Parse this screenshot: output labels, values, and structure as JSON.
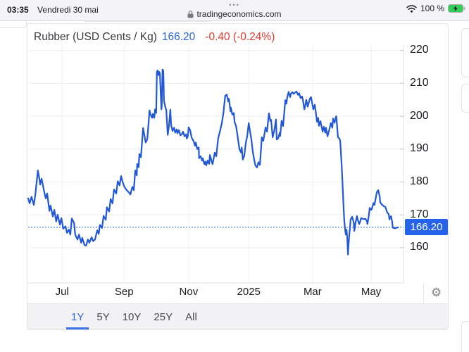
{
  "status_bar": {
    "time": "03:35",
    "date": "Vendredi 30 mai",
    "menu_dots": "•••",
    "url": "tradingeconomics.com",
    "battery": "100 %"
  },
  "header": {
    "title": "Rubber (USD Cents / Kg)",
    "price": "166.20",
    "change": "-0.40 (-0.24%)"
  },
  "footer": {
    "tabs": [
      {
        "label": "1Y",
        "active": true
      },
      {
        "label": "5Y",
        "active": false
      },
      {
        "label": "10Y",
        "active": false
      },
      {
        "label": "25Y",
        "active": false
      },
      {
        "label": "All",
        "active": false
      }
    ]
  },
  "icons": {
    "gear": "⚙"
  },
  "chart_data": {
    "type": "line",
    "title": "Rubber (USD Cents / Kg)",
    "unit": "USD Cents / Kg",
    "last_price": 166.2,
    "change": -0.4,
    "change_pct": "-0.24%",
    "current_value_label": "166.20",
    "x_range": [
      "2024-05-30",
      "2025-05-30"
    ],
    "ylim": [
      155,
      225
    ],
    "grid": true,
    "y_ticks": [
      220,
      210,
      200,
      190,
      180,
      170,
      160
    ],
    "x_ticks": [
      {
        "label": "Jul",
        "t": 0.091
      },
      {
        "label": "Sep",
        "t": 0.257
      },
      {
        "label": "Nov",
        "t": 0.43
      },
      {
        "label": "2025",
        "t": 0.591
      },
      {
        "label": "Mar",
        "t": 0.762
      },
      {
        "label": "May",
        "t": 0.919
      }
    ],
    "colors": {
      "line": "#2258d6",
      "marker_bg": "#2563eb",
      "dotted": "#2f6ae0",
      "grid": "#ededef",
      "grid_v": "#f1f1f3",
      "axis": "#e0e0e3",
      "tick": "#c7c7cb"
    },
    "series": [
      {
        "name": "Rubber 1Y",
        "points": [
          [
            0,
            175
          ],
          [
            0.004,
            173.5
          ],
          [
            0.009,
            175.5
          ],
          [
            0.015,
            173
          ],
          [
            0.019,
            176
          ],
          [
            0.026,
            183.5
          ],
          [
            0.03,
            181
          ],
          [
            0.032,
            179.2
          ],
          [
            0.036,
            181
          ],
          [
            0.042,
            177.5
          ],
          [
            0.047,
            175
          ],
          [
            0.051,
            176.5
          ],
          [
            0.057,
            171.2
          ],
          [
            0.06,
            172.8
          ],
          [
            0.066,
            169.5
          ],
          [
            0.07,
            171.5
          ],
          [
            0.075,
            168
          ],
          [
            0.079,
            170
          ],
          [
            0.085,
            167
          ],
          [
            0.089,
            169
          ],
          [
            0.094,
            165.8
          ],
          [
            0.1,
            166.5
          ],
          [
            0.104,
            164.5
          ],
          [
            0.109,
            165.5
          ],
          [
            0.113,
            164
          ],
          [
            0.117,
            168.9
          ],
          [
            0.123,
            167.5
          ],
          [
            0.126,
            164
          ],
          [
            0.132,
            162.5
          ],
          [
            0.136,
            164
          ],
          [
            0.142,
            161.5
          ],
          [
            0.145,
            163
          ],
          [
            0.151,
            160.8
          ],
          [
            0.155,
            160.6
          ],
          [
            0.16,
            162.5
          ],
          [
            0.164,
            161.5
          ],
          [
            0.17,
            163.2
          ],
          [
            0.174,
            162
          ],
          [
            0.179,
            162.5
          ],
          [
            0.185,
            165.3
          ],
          [
            0.189,
            164.2
          ],
          [
            0.192,
            166.9
          ],
          [
            0.198,
            166
          ],
          [
            0.202,
            169.7
          ],
          [
            0.208,
            168.5
          ],
          [
            0.211,
            172.3
          ],
          [
            0.217,
            171
          ],
          [
            0.221,
            174.8
          ],
          [
            0.226,
            173.5
          ],
          [
            0.23,
            177.7
          ],
          [
            0.236,
            176.5
          ],
          [
            0.24,
            180.2
          ],
          [
            0.245,
            179
          ],
          [
            0.249,
            181.8
          ],
          [
            0.253,
            180
          ],
          [
            0.258,
            178.5
          ],
          [
            0.264,
            177.5
          ],
          [
            0.27,
            176.8
          ],
          [
            0.274,
            176.2
          ],
          [
            0.279,
            178.5
          ],
          [
            0.283,
            177.5
          ],
          [
            0.287,
            183.5
          ],
          [
            0.291,
            182
          ],
          [
            0.292,
            185.5
          ],
          [
            0.296,
            184.5
          ],
          [
            0.298,
            188.5
          ],
          [
            0.302,
            187.5
          ],
          [
            0.306,
            193.5
          ],
          [
            0.308,
            196.4
          ],
          [
            0.311,
            194.5
          ],
          [
            0.315,
            192
          ],
          [
            0.319,
            193
          ],
          [
            0.323,
            198.5
          ],
          [
            0.325,
            201.8
          ],
          [
            0.328,
            200.5
          ],
          [
            0.332,
            199.5
          ],
          [
            0.334,
            200.7
          ],
          [
            0.338,
            199.5
          ],
          [
            0.34,
            202.1
          ],
          [
            0.343,
            201
          ],
          [
            0.345,
            213.5
          ],
          [
            0.347,
            213.9
          ],
          [
            0.349,
            212.5
          ],
          [
            0.351,
            213.5
          ],
          [
            0.353,
            212.9
          ],
          [
            0.355,
            207.5
          ],
          [
            0.357,
            202.1
          ],
          [
            0.358,
            203
          ],
          [
            0.36,
            214.2
          ],
          [
            0.362,
            213.8
          ],
          [
            0.364,
            204.7
          ],
          [
            0.368,
            202.5
          ],
          [
            0.37,
            202
          ],
          [
            0.374,
            194.3
          ],
          [
            0.377,
            196.8
          ],
          [
            0.381,
            202
          ],
          [
            0.383,
            197.3
          ],
          [
            0.387,
            195.5
          ],
          [
            0.391,
            196.5
          ],
          [
            0.394,
            195
          ],
          [
            0.398,
            196
          ],
          [
            0.4,
            194.8
          ],
          [
            0.404,
            195.8
          ],
          [
            0.408,
            194.2
          ],
          [
            0.411,
            194.4
          ],
          [
            0.415,
            195.3
          ],
          [
            0.419,
            193.9
          ],
          [
            0.423,
            194.5
          ],
          [
            0.425,
            193.2
          ],
          [
            0.428,
            194
          ],
          [
            0.43,
            196.6
          ],
          [
            0.434,
            195.8
          ],
          [
            0.438,
            193.5
          ],
          [
            0.443,
            192.5
          ],
          [
            0.447,
            191
          ],
          [
            0.449,
            192
          ],
          [
            0.453,
            190
          ],
          [
            0.457,
            190.5
          ],
          [
            0.458,
            187.2
          ],
          [
            0.462,
            187.8
          ],
          [
            0.466,
            186.5
          ],
          [
            0.468,
            187.2
          ],
          [
            0.472,
            185.4
          ],
          [
            0.475,
            186.2
          ],
          [
            0.477,
            185
          ],
          [
            0.481,
            186.5
          ],
          [
            0.485,
            185.5
          ],
          [
            0.487,
            188.2
          ],
          [
            0.491,
            186.5
          ],
          [
            0.494,
            185.4
          ],
          [
            0.5,
            188.9
          ],
          [
            0.504,
            187.8
          ],
          [
            0.509,
            193.2
          ],
          [
            0.515,
            195.9
          ],
          [
            0.519,
            198
          ],
          [
            0.523,
            200.9
          ],
          [
            0.528,
            206.2
          ],
          [
            0.532,
            206.6
          ],
          [
            0.536,
            204.5
          ],
          [
            0.538,
            205.3
          ],
          [
            0.542,
            201.5
          ],
          [
            0.543,
            202.6
          ],
          [
            0.547,
            200.5
          ],
          [
            0.551,
            201
          ],
          [
            0.553,
            198.3
          ],
          [
            0.557,
            197
          ],
          [
            0.56,
            194.8
          ],
          [
            0.566,
            190
          ],
          [
            0.57,
            189
          ],
          [
            0.572,
            190.5
          ],
          [
            0.575,
            186.8
          ],
          [
            0.579,
            188
          ],
          [
            0.583,
            191.8
          ],
          [
            0.587,
            194
          ],
          [
            0.591,
            197.9
          ],
          [
            0.598,
            193
          ],
          [
            0.602,
            189
          ],
          [
            0.606,
            186.5
          ],
          [
            0.609,
            185
          ],
          [
            0.613,
            184.4
          ],
          [
            0.617,
            186
          ],
          [
            0.621,
            185.2
          ],
          [
            0.626,
            193.6
          ],
          [
            0.63,
            192.5
          ],
          [
            0.636,
            196.6
          ],
          [
            0.64,
            195.3
          ],
          [
            0.645,
            200.9
          ],
          [
            0.649,
            198.5
          ],
          [
            0.651,
            198.9
          ],
          [
            0.655,
            193.6
          ],
          [
            0.66,
            196
          ],
          [
            0.664,
            199
          ],
          [
            0.666,
            192.9
          ],
          [
            0.67,
            193.3
          ],
          [
            0.674,
            195
          ],
          [
            0.675,
            194
          ],
          [
            0.679,
            198.6
          ],
          [
            0.683,
            197
          ],
          [
            0.689,
            204.9
          ],
          [
            0.692,
            203.8
          ],
          [
            0.694,
            205.6
          ],
          [
            0.698,
            207.4
          ],
          [
            0.702,
            205.8
          ],
          [
            0.704,
            206.9
          ],
          [
            0.708,
            207.3
          ],
          [
            0.711,
            206.8
          ],
          [
            0.715,
            207.2
          ],
          [
            0.719,
            207.5
          ],
          [
            0.723,
            206.5
          ],
          [
            0.726,
            207
          ],
          [
            0.73,
            205.5
          ],
          [
            0.734,
            206
          ],
          [
            0.736,
            205
          ],
          [
            0.74,
            202.1
          ],
          [
            0.742,
            203
          ],
          [
            0.745,
            205
          ],
          [
            0.749,
            202.9
          ],
          [
            0.755,
            205.4
          ],
          [
            0.758,
            205.8
          ],
          [
            0.764,
            202.1
          ],
          [
            0.768,
            203.5
          ],
          [
            0.774,
            198.3
          ],
          [
            0.777,
            199.5
          ],
          [
            0.779,
            197.1
          ],
          [
            0.783,
            198.5
          ],
          [
            0.789,
            195.3
          ],
          [
            0.792,
            196.8
          ],
          [
            0.796,
            195
          ],
          [
            0.798,
            196.5
          ],
          [
            0.802,
            193.9
          ],
          [
            0.808,
            196.4
          ],
          [
            0.811,
            197.9
          ],
          [
            0.815,
            196.5
          ],
          [
            0.817,
            199.3
          ],
          [
            0.821,
            198
          ],
          [
            0.825,
            200
          ],
          [
            0.826,
            199.5
          ],
          [
            0.83,
            193.6
          ],
          [
            0.834,
            193.2
          ],
          [
            0.836,
            192.5
          ],
          [
            0.84,
            185
          ],
          [
            0.842,
            180
          ],
          [
            0.845,
            172.8
          ],
          [
            0.847,
            168
          ],
          [
            0.849,
            165.8
          ],
          [
            0.851,
            164
          ],
          [
            0.853,
            165.5
          ],
          [
            0.855,
            163
          ],
          [
            0.857,
            157.9
          ],
          [
            0.858,
            160
          ],
          [
            0.86,
            163.5
          ],
          [
            0.862,
            165.9
          ],
          [
            0.864,
            168.6
          ],
          [
            0.868,
            169.4
          ],
          [
            0.872,
            167.8
          ],
          [
            0.874,
            165.1
          ],
          [
            0.877,
            167.5
          ],
          [
            0.881,
            169.6
          ],
          [
            0.883,
            168.5
          ],
          [
            0.887,
            167.2
          ],
          [
            0.891,
            168.5
          ],
          [
            0.892,
            169
          ],
          [
            0.896,
            168.8
          ],
          [
            0.9,
            168.7
          ],
          [
            0.904,
            168.8
          ],
          [
            0.908,
            168
          ],
          [
            0.909,
            167.2
          ],
          [
            0.913,
            170
          ],
          [
            0.915,
            172.1
          ],
          [
            0.919,
            171.5
          ],
          [
            0.921,
            171.8
          ],
          [
            0.925,
            173.6
          ],
          [
            0.928,
            173
          ],
          [
            0.934,
            176.8
          ],
          [
            0.938,
            177.5
          ],
          [
            0.942,
            175.5
          ],
          [
            0.943,
            173.9
          ],
          [
            0.947,
            173.2
          ],
          [
            0.953,
            172.6
          ],
          [
            0.957,
            172.4
          ],
          [
            0.962,
            170.7
          ],
          [
            0.966,
            170.2
          ],
          [
            0.968,
            168.6
          ],
          [
            0.972,
            169.6
          ],
          [
            0.975,
            168
          ],
          [
            0.977,
            166.1
          ],
          [
            0.981,
            165.9
          ],
          [
            0.985,
            166
          ],
          [
            0.991,
            166.2
          ]
        ]
      }
    ]
  }
}
